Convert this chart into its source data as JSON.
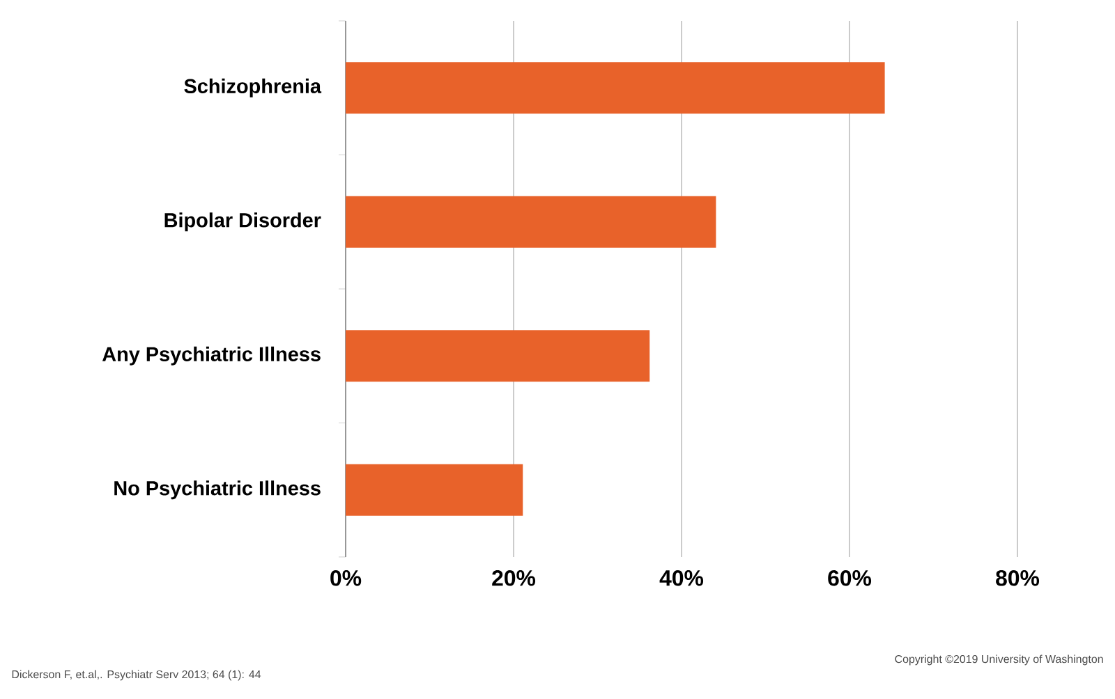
{
  "chart_data": {
    "type": "bar",
    "orientation": "horizontal",
    "categories": [
      "Schizophrenia",
      "Bipolar Disorder",
      "Any Psychiatric Illness",
      "No Psychiatric Illness"
    ],
    "values": [
      64.2,
      44.1,
      36.2,
      21.1
    ],
    "color": "#e8622a",
    "xlim": [
      0,
      80
    ],
    "xticks": [
      {
        "value": 0,
        "label": "0%"
      },
      {
        "value": 20,
        "label": "20%"
      },
      {
        "value": 40,
        "label": "40%"
      },
      {
        "value": 60,
        "label": "60%"
      },
      {
        "value": 80,
        "label": "80%"
      }
    ],
    "grid": "x",
    "annotations": [
      "Dickerson F, et.al,. Psychiatr Serv 2013; 64 (1):  44",
      "Copyright ©2019  University of Washington"
    ]
  }
}
